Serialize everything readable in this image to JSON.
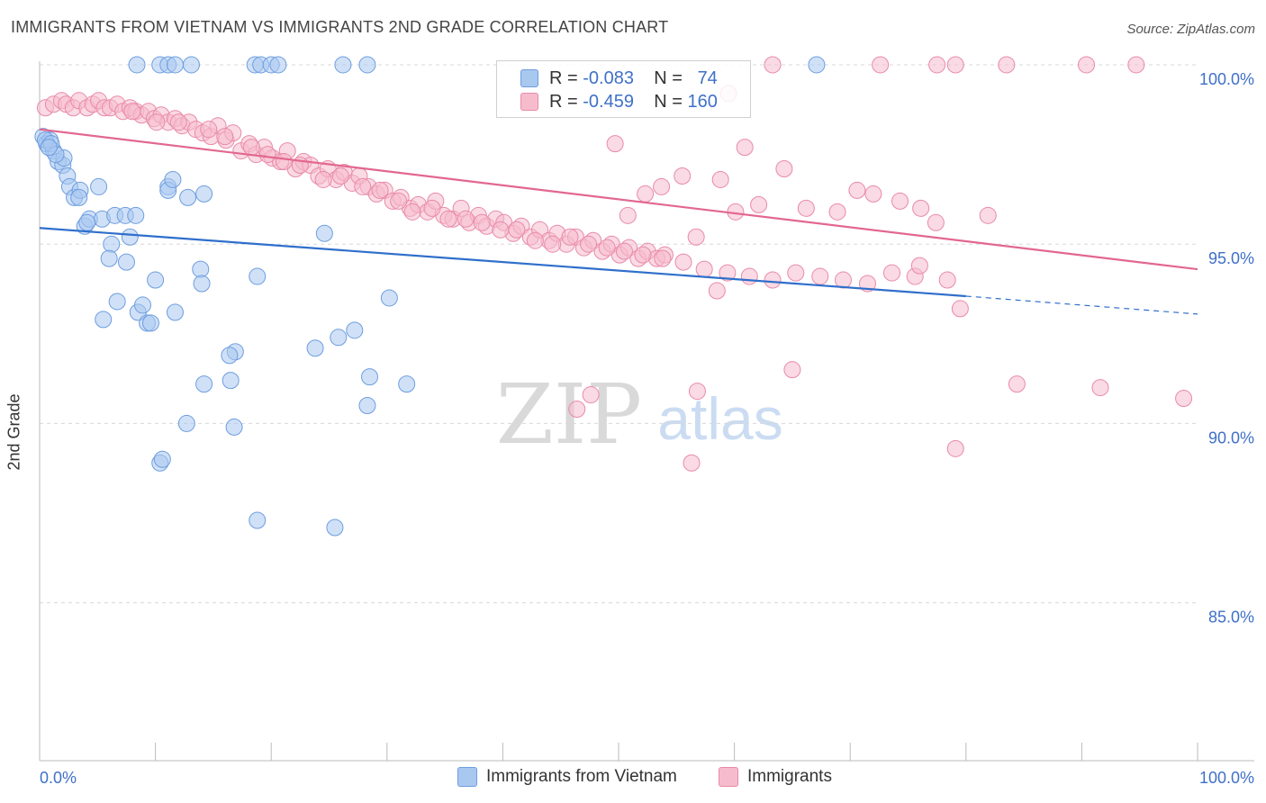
{
  "title": "IMMIGRANTS FROM VIETNAM VS IMMIGRANTS 2ND GRADE CORRELATION CHART",
  "source": "Source: ZipAtlas.com",
  "watermark": {
    "zip": "ZIP",
    "atlas": "atlas"
  },
  "colors": {
    "blue_fill": "#a9c8f0",
    "blue_stroke": "#6d9de0",
    "blue_line": "#2f6fcb",
    "pink_fill": "#f6bccd",
    "pink_stroke": "#e98aa8",
    "pink_line": "#e2678f",
    "axis_text": "#3f70c8",
    "grid": "#d8d8d8"
  },
  "legend_top": {
    "series1": {
      "r_label": "R =",
      "r_value": "-0.083",
      "n_label": "N =",
      "n_value": "74"
    },
    "series2": {
      "r_label": "R =",
      "r_value": "-0.459",
      "n_label": "N =",
      "n_value": "160"
    }
  },
  "legend_bottom": [
    "Immigrants from Vietnam",
    "Immigrants"
  ],
  "chart_data": {
    "type": "scatter",
    "title": "IMMIGRANTS FROM VIETNAM VS IMMIGRANTS 2ND GRADE CORRELATION CHART",
    "xlabel": "",
    "ylabel": "2nd Grade",
    "xlim": [
      0,
      100
    ],
    "ylim": [
      80.6,
      100.3
    ],
    "x_tick_labels": [
      "0.0%",
      "100.0%"
    ],
    "y_ticks": [
      85,
      90,
      95,
      100
    ],
    "y_tick_labels": [
      "85.0%",
      "90.0%",
      "95.0%",
      "100.0%"
    ],
    "grid": true,
    "legend_placement": "bottom",
    "series": [
      {
        "name": "Immigrants from Vietnam",
        "trend": {
          "x0": 0,
          "y0": 95.45,
          "x1": 80,
          "y1": 93.55,
          "dash_to_x": 100,
          "dash_to_y": 93.05
        },
        "points": [
          [
            0.3,
            98.0
          ],
          [
            0.6,
            97.8
          ],
          [
            0.9,
            97.9
          ],
          [
            1.2,
            97.6
          ],
          [
            1.6,
            97.3
          ],
          [
            2.0,
            97.2
          ],
          [
            2.4,
            96.9
          ],
          [
            2.6,
            96.6
          ],
          [
            3.0,
            96.3
          ],
          [
            3.5,
            96.5
          ],
          [
            3.9,
            95.5
          ],
          [
            4.3,
            95.7
          ],
          [
            5.1,
            96.6
          ],
          [
            5.4,
            95.7
          ],
          [
            6.2,
            95.0
          ],
          [
            6.5,
            95.8
          ],
          [
            7.4,
            95.8
          ],
          [
            7.8,
            95.2
          ],
          [
            8.3,
            95.8
          ],
          [
            6.0,
            94.6
          ],
          [
            7.5,
            94.5
          ],
          [
            6.7,
            93.4
          ],
          [
            8.5,
            93.1
          ],
          [
            8.9,
            93.3
          ],
          [
            9.3,
            92.8
          ],
          [
            9.6,
            92.8
          ],
          [
            5.5,
            92.9
          ],
          [
            10.0,
            94.0
          ],
          [
            11.1,
            96.6
          ],
          [
            11.1,
            96.5
          ],
          [
            11.5,
            96.8
          ],
          [
            12.8,
            96.3
          ],
          [
            14.2,
            96.4
          ],
          [
            13.9,
            94.3
          ],
          [
            14.0,
            93.9
          ],
          [
            11.7,
            93.1
          ],
          [
            18.8,
            94.1
          ],
          [
            16.9,
            92.0
          ],
          [
            16.4,
            91.9
          ],
          [
            14.2,
            91.1
          ],
          [
            16.5,
            91.2
          ],
          [
            12.7,
            90.0
          ],
          [
            16.8,
            89.9
          ],
          [
            10.4,
            88.9
          ],
          [
            10.6,
            89.0
          ],
          [
            18.8,
            87.3
          ],
          [
            25.5,
            87.1
          ],
          [
            23.8,
            92.1
          ],
          [
            25.8,
            92.4
          ],
          [
            27.2,
            92.6
          ],
          [
            28.5,
            91.3
          ],
          [
            28.3,
            90.5
          ],
          [
            31.7,
            91.1
          ],
          [
            30.2,
            93.5
          ],
          [
            24.6,
            95.3
          ],
          [
            8.4,
            100.0
          ],
          [
            10.4,
            100.0
          ],
          [
            11.1,
            100.0
          ],
          [
            11.7,
            100.0
          ],
          [
            13.1,
            100.0
          ],
          [
            18.6,
            100.0
          ],
          [
            19.1,
            100.0
          ],
          [
            20.0,
            100.0
          ],
          [
            20.6,
            100.0
          ],
          [
            26.2,
            100.0
          ],
          [
            28.3,
            100.0
          ],
          [
            67.1,
            100.0
          ],
          [
            0.5,
            97.9
          ],
          [
            1.0,
            97.8
          ],
          [
            2.1,
            97.4
          ],
          [
            3.4,
            96.3
          ],
          [
            4.1,
            95.6
          ],
          [
            1.4,
            97.5
          ],
          [
            0.8,
            97.7
          ]
        ]
      },
      {
        "name": "Immigrants",
        "trend": {
          "x0": 0,
          "y0": 98.2,
          "x1": 100,
          "y1": 94.3
        },
        "points": [
          [
            0.5,
            98.8
          ],
          [
            1.2,
            98.9
          ],
          [
            1.9,
            99.0
          ],
          [
            2.3,
            98.9
          ],
          [
            2.9,
            98.8
          ],
          [
            3.4,
            99.0
          ],
          [
            4.1,
            98.8
          ],
          [
            4.6,
            98.9
          ],
          [
            5.1,
            99.0
          ],
          [
            5.6,
            98.8
          ],
          [
            6.1,
            98.8
          ],
          [
            6.7,
            98.9
          ],
          [
            7.2,
            98.7
          ],
          [
            7.8,
            98.8
          ],
          [
            8.3,
            98.7
          ],
          [
            8.8,
            98.6
          ],
          [
            9.4,
            98.7
          ],
          [
            9.9,
            98.5
          ],
          [
            10.5,
            98.6
          ],
          [
            11.1,
            98.4
          ],
          [
            11.7,
            98.5
          ],
          [
            12.3,
            98.3
          ],
          [
            12.9,
            98.4
          ],
          [
            13.5,
            98.2
          ],
          [
            14.1,
            98.1
          ],
          [
            14.8,
            98.0
          ],
          [
            15.4,
            98.3
          ],
          [
            16.1,
            97.9
          ],
          [
            16.7,
            98.1
          ],
          [
            17.4,
            97.6
          ],
          [
            18.1,
            97.8
          ],
          [
            18.7,
            97.5
          ],
          [
            19.4,
            97.7
          ],
          [
            20.1,
            97.4
          ],
          [
            20.8,
            97.3
          ],
          [
            21.4,
            97.6
          ],
          [
            22.1,
            97.1
          ],
          [
            22.8,
            97.3
          ],
          [
            23.4,
            97.2
          ],
          [
            24.1,
            96.9
          ],
          [
            24.9,
            97.1
          ],
          [
            25.6,
            96.8
          ],
          [
            26.3,
            97.0
          ],
          [
            27.0,
            96.7
          ],
          [
            27.6,
            96.9
          ],
          [
            28.4,
            96.6
          ],
          [
            29.1,
            96.4
          ],
          [
            29.8,
            96.5
          ],
          [
            30.5,
            96.2
          ],
          [
            31.2,
            96.3
          ],
          [
            32.0,
            96.0
          ],
          [
            32.7,
            96.1
          ],
          [
            33.5,
            95.9
          ],
          [
            34.2,
            96.2
          ],
          [
            34.9,
            95.8
          ],
          [
            35.7,
            95.7
          ],
          [
            36.4,
            96.0
          ],
          [
            37.1,
            95.6
          ],
          [
            37.9,
            95.8
          ],
          [
            38.6,
            95.5
          ],
          [
            39.4,
            95.7
          ],
          [
            40.1,
            95.6
          ],
          [
            40.9,
            95.3
          ],
          [
            41.6,
            95.5
          ],
          [
            42.4,
            95.2
          ],
          [
            43.2,
            95.4
          ],
          [
            44.0,
            95.1
          ],
          [
            44.7,
            95.3
          ],
          [
            45.5,
            95.0
          ],
          [
            46.3,
            95.2
          ],
          [
            47.0,
            94.9
          ],
          [
            47.8,
            95.1
          ],
          [
            48.6,
            94.8
          ],
          [
            49.4,
            95.0
          ],
          [
            50.1,
            94.7
          ],
          [
            50.9,
            94.9
          ],
          [
            51.7,
            94.6
          ],
          [
            52.5,
            94.8
          ],
          [
            53.3,
            94.6
          ],
          [
            54.0,
            94.7
          ],
          [
            8.0,
            98.7
          ],
          [
            10.1,
            98.4
          ],
          [
            12.0,
            98.4
          ],
          [
            14.6,
            98.2
          ],
          [
            16.0,
            98.0
          ],
          [
            18.3,
            97.7
          ],
          [
            19.7,
            97.5
          ],
          [
            21.1,
            97.3
          ],
          [
            22.5,
            97.2
          ],
          [
            24.5,
            96.8
          ],
          [
            26.0,
            96.9
          ],
          [
            27.9,
            96.6
          ],
          [
            29.4,
            96.5
          ],
          [
            31.0,
            96.2
          ],
          [
            32.2,
            95.9
          ],
          [
            33.9,
            96.0
          ],
          [
            35.3,
            95.7
          ],
          [
            36.8,
            95.7
          ],
          [
            38.2,
            95.6
          ],
          [
            39.8,
            95.4
          ],
          [
            41.2,
            95.4
          ],
          [
            42.8,
            95.1
          ],
          [
            44.3,
            95.0
          ],
          [
            45.8,
            95.2
          ],
          [
            47.4,
            95.0
          ],
          [
            49.0,
            94.9
          ],
          [
            50.5,
            94.8
          ],
          [
            52.1,
            94.7
          ],
          [
            53.8,
            94.6
          ],
          [
            55.6,
            94.5
          ],
          [
            57.4,
            94.3
          ],
          [
            59.4,
            94.2
          ],
          [
            61.3,
            94.1
          ],
          [
            63.3,
            94.0
          ],
          [
            65.3,
            94.2
          ],
          [
            67.4,
            94.1
          ],
          [
            69.4,
            94.0
          ],
          [
            71.5,
            93.9
          ],
          [
            73.6,
            94.2
          ],
          [
            75.6,
            94.1
          ],
          [
            76.0,
            94.4
          ],
          [
            78.4,
            94.0
          ],
          [
            56.7,
            95.2
          ],
          [
            58.5,
            93.7
          ],
          [
            60.1,
            95.9
          ],
          [
            62.1,
            96.1
          ],
          [
            64.3,
            97.1
          ],
          [
            66.2,
            96.0
          ],
          [
            68.9,
            95.9
          ],
          [
            70.6,
            96.5
          ],
          [
            72.0,
            96.4
          ],
          [
            74.3,
            96.2
          ],
          [
            76.1,
            96.0
          ],
          [
            77.4,
            95.6
          ],
          [
            79.5,
            93.2
          ],
          [
            81.9,
            95.8
          ],
          [
            84.4,
            91.1
          ],
          [
            91.6,
            91.0
          ],
          [
            98.8,
            90.7
          ],
          [
            65.0,
            91.5
          ],
          [
            56.8,
            90.9
          ],
          [
            56.3,
            88.9
          ],
          [
            79.1,
            89.3
          ],
          [
            47.6,
            90.8
          ],
          [
            46.4,
            90.4
          ],
          [
            63.3,
            100.0
          ],
          [
            72.6,
            100.0
          ],
          [
            77.5,
            100.0
          ],
          [
            79.1,
            100.0
          ],
          [
            83.5,
            100.0
          ],
          [
            90.4,
            100.0
          ],
          [
            94.7,
            100.0
          ],
          [
            59.5,
            99.2
          ],
          [
            49.7,
            97.8
          ],
          [
            60.9,
            97.7
          ],
          [
            58.8,
            96.8
          ],
          [
            55.5,
            96.9
          ],
          [
            53.7,
            96.6
          ],
          [
            52.3,
            96.4
          ],
          [
            50.8,
            95.8
          ]
        ]
      }
    ]
  }
}
